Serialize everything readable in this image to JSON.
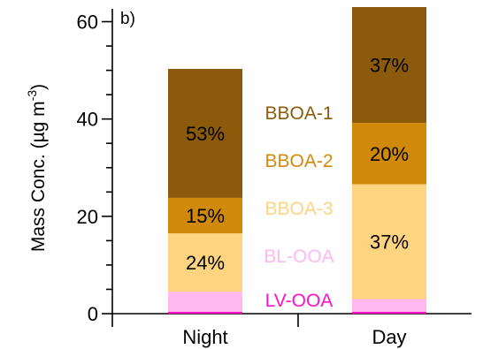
{
  "chart_data": {
    "type": "bar",
    "stacked": true,
    "panel_label": "b)",
    "categories": [
      "Night",
      "Day"
    ],
    "ylabel": "Mass Conc. (µg m",
    "ylabel_sup": "-3",
    "ylabel_tail": ")",
    "ylim": [
      0,
      63
    ],
    "yticks": [
      0,
      20,
      40,
      60
    ],
    "yminor_step": 5,
    "grid": false,
    "series": [
      {
        "name": "LV-OOA",
        "color": "#FF10C8",
        "values": [
          0.4,
          0.4
        ],
        "pct": [
          "",
          ""
        ]
      },
      {
        "name": "BL-OOA",
        "color": "#FFB8F0",
        "values": [
          4.1,
          2.6
        ],
        "pct": [
          "",
          ""
        ]
      },
      {
        "name": "BBOA-3",
        "color": "#FFD480",
        "values": [
          12.0,
          23.6
        ],
        "pct": [
          "24%",
          "37%"
        ]
      },
      {
        "name": "BBOA-2",
        "color": "#D0890A",
        "values": [
          7.3,
          12.6
        ],
        "pct": [
          "15%",
          "20%"
        ]
      },
      {
        "name": "BBOA-1",
        "color": "#8B5A0A",
        "values": [
          26.5,
          23.8
        ],
        "pct": [
          "53%",
          "37%"
        ]
      }
    ],
    "legend_order": [
      "BBOA-1",
      "BBOA-2",
      "BBOA-3",
      "BL-OOA",
      "LV-OOA"
    ]
  }
}
